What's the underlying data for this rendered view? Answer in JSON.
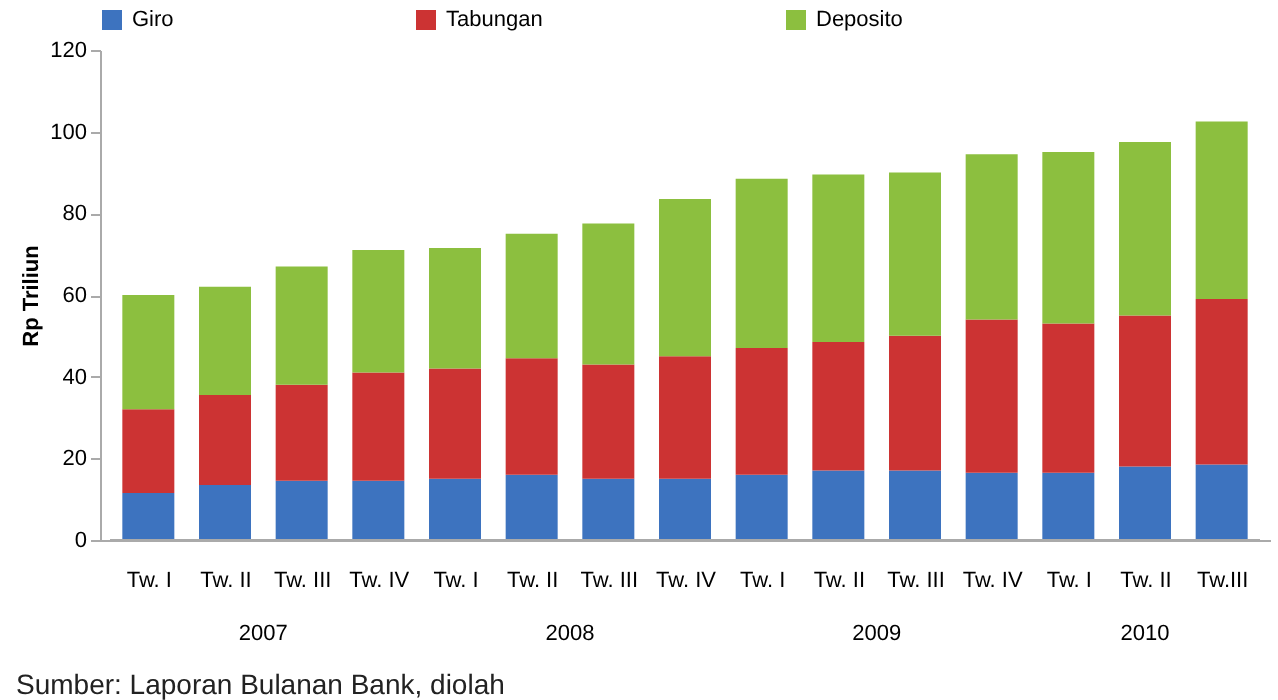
{
  "chart_data": {
    "type": "bar",
    "stacked": true,
    "ylabel": "Rp Triliun",
    "categories": [
      "Tw. I",
      "Tw. II",
      "Tw. III",
      "Tw. IV",
      "Tw. I",
      "Tw. II",
      "Tw. III",
      "Tw. IV",
      "Tw. I",
      "Tw. II",
      "Tw. III",
      "Tw. IV",
      "Tw. I",
      "Tw. II",
      "Tw.III"
    ],
    "series": [
      {
        "name": "Giro",
        "color": "#3d73bf",
        "values": [
          11.5,
          13.5,
          14.5,
          14.5,
          15,
          16,
          15,
          15,
          16,
          17,
          17,
          16.5,
          16.5,
          18,
          18.5
        ]
      },
      {
        "name": "Tabungan",
        "color": "#cc3333",
        "values": [
          20.5,
          22,
          23.5,
          26.5,
          27,
          28.5,
          28,
          30,
          31,
          31.5,
          33,
          37.5,
          36.5,
          37,
          40.5
        ]
      },
      {
        "name": "Deposito",
        "color": "#8cbf3f",
        "values": [
          28,
          26.5,
          29,
          30,
          29.5,
          30.5,
          34.5,
          38.5,
          41.5,
          41,
          40,
          40.5,
          42,
          42.5,
          43.5
        ]
      }
    ],
    "ylim": [
      0,
      120
    ],
    "yticks": [
      0,
      20,
      40,
      60,
      80,
      100,
      120
    ],
    "grid": false,
    "legend": "top",
    "annotations": [
      "2007",
      "2008",
      "2009",
      "2010",
      "Sumber: Laporan Bulanan Bank, diolah"
    ]
  }
}
